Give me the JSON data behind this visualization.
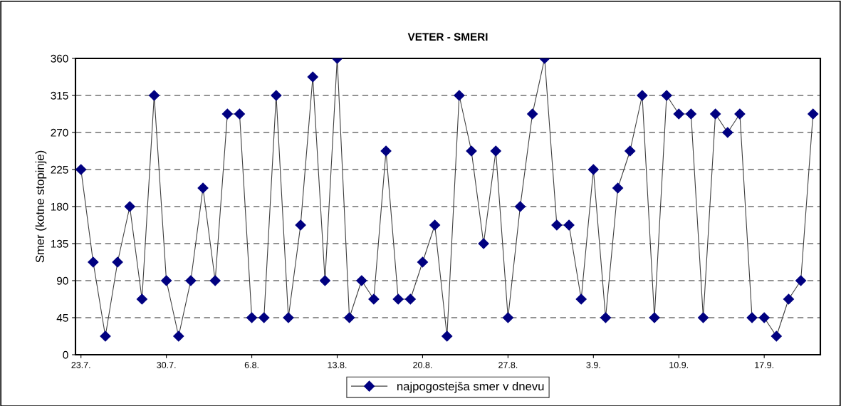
{
  "chart_data": {
    "type": "line",
    "title": "VETER - SMERI",
    "ylabel": "Smer (kotne stopinje)",
    "categories": [
      "23.7.",
      null,
      null,
      null,
      null,
      null,
      null,
      "30.7.",
      null,
      null,
      null,
      null,
      null,
      null,
      "6.8.",
      null,
      null,
      null,
      null,
      null,
      null,
      "13.8.",
      null,
      null,
      null,
      null,
      null,
      null,
      "20.8.",
      null,
      null,
      null,
      null,
      null,
      null,
      "27.8.",
      null,
      null,
      null,
      null,
      null,
      null,
      "3.9.",
      null,
      null,
      null,
      null,
      null,
      null,
      "10.9.",
      null,
      null,
      null,
      null,
      null,
      null,
      "17.9.",
      null,
      null,
      null,
      null
    ],
    "series": [
      {
        "name": "najpogostejša smer v dnevu",
        "color": "#000080",
        "values": [
          225,
          112.5,
          22.5,
          112.5,
          180,
          67.5,
          315,
          90,
          22.5,
          90,
          202.5,
          90,
          292.5,
          292.5,
          45,
          45,
          315,
          45,
          157.5,
          337.5,
          90,
          360,
          45,
          90,
          67.5,
          247.5,
          67.5,
          67.5,
          112.5,
          157.5,
          22.5,
          315,
          247.5,
          135,
          247.5,
          45,
          180,
          292.5,
          360,
          157.5,
          157.5,
          67.5,
          225,
          45,
          202.5,
          247.5,
          315,
          45,
          315,
          292.5,
          292.5,
          45,
          292.5,
          270,
          292.5,
          45,
          45,
          22.5,
          67.5,
          90,
          292.5
        ]
      }
    ],
    "ylim": [
      0,
      360
    ],
    "yticks": [
      0,
      45,
      90,
      135,
      180,
      225,
      270,
      315,
      360
    ],
    "grid": "y",
    "legend": "bottom",
    "marker": "diamond",
    "line_style": "solid"
  }
}
